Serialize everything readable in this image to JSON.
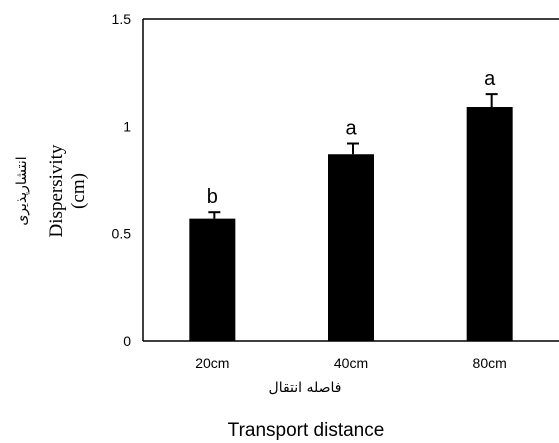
{
  "chart_data": {
    "type": "bar",
    "categories": [
      "20cm",
      "40cm",
      "80cm"
    ],
    "values": [
      0.57,
      0.87,
      1.09
    ],
    "errors": [
      0.03,
      0.05,
      0.06
    ],
    "significance_letters": [
      "b",
      "a",
      "a"
    ],
    "ylim": [
      0,
      1.5
    ],
    "yticks": [
      "0",
      "0.5",
      "1",
      "1.5"
    ],
    "ylabel": "Dispersivity (cm)",
    "ylabel_line1": "Dispersivity",
    "ylabel_line2": "(cm)",
    "ylabel_fa": "انتشارپذیری",
    "xlabel": "Transport distance",
    "xlabel_fa": "فاصله انتقال",
    "grid": false,
    "legend": "none",
    "bar_color": "#000000"
  }
}
